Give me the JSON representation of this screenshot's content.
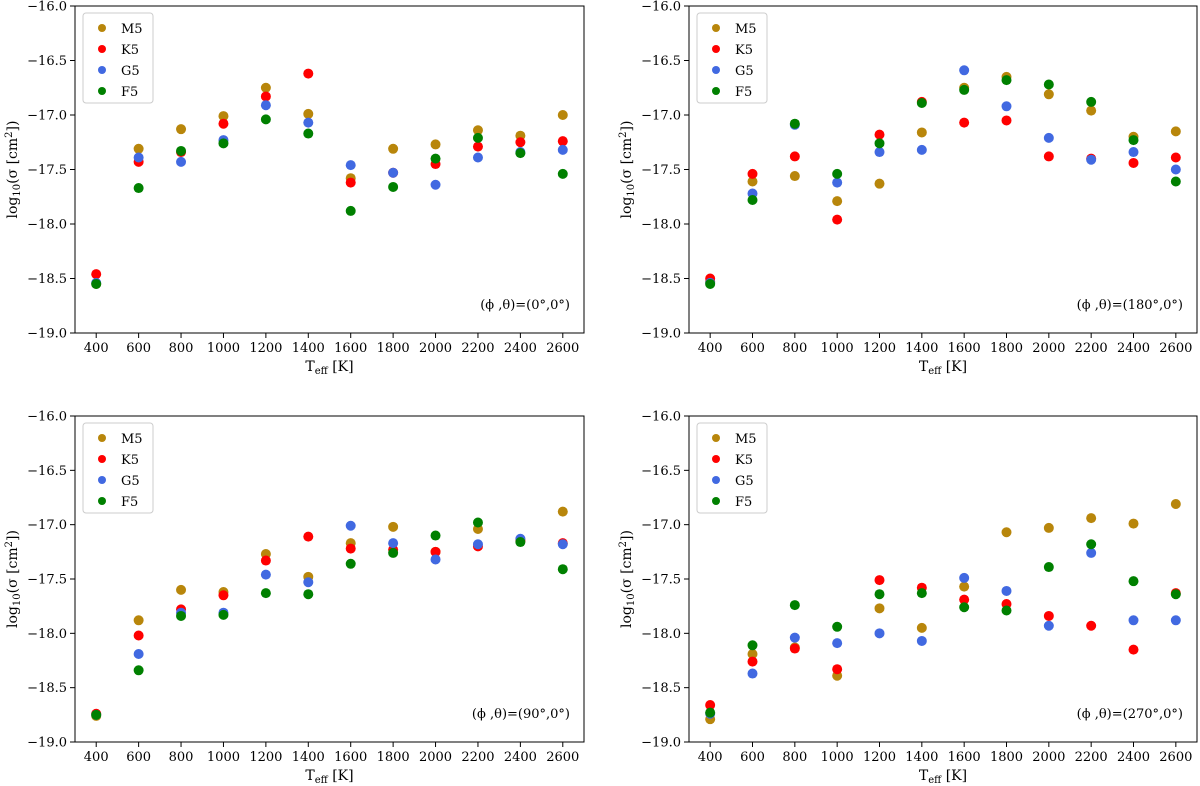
{
  "chart_data": [
    {
      "type": "scatter",
      "title": "",
      "xlabel": "T",
      "xlabel_sub": "eff",
      "xlabel_unit": " [K]",
      "ylabel_text": "log10(σ [cm2])",
      "annotation": "(ϕ ,θ)=(0°,0°)",
      "xticks": [
        400,
        600,
        800,
        1000,
        1200,
        1400,
        1600,
        1800,
        2000,
        2200,
        2400,
        2600
      ],
      "yticks": [
        -16.0,
        -16.5,
        -17.0,
        -17.5,
        -18.0,
        -18.5,
        -19.0
      ],
      "ytick_labels": [
        "−16.0",
        "−16.5",
        "−17.0",
        "−17.5",
        "−18.0",
        "−18.5",
        "−19.0"
      ],
      "xlim": [
        300,
        2700
      ],
      "ylim": [
        -19.0,
        -16.0
      ],
      "legend": "top-left",
      "series": [
        {
          "name": "M5",
          "color": "#b8860b",
          "x": [
            400,
            600,
            800,
            1000,
            1200,
            1400,
            1600,
            1800,
            2000,
            2200,
            2400,
            2600
          ],
          "y": [
            -18.55,
            -17.31,
            -17.13,
            -17.01,
            -16.75,
            -16.99,
            -17.58,
            -17.31,
            -17.27,
            -17.14,
            -17.19,
            -17.0
          ]
        },
        {
          "name": "K5",
          "color": "#ff0000",
          "x": [
            400,
            600,
            800,
            1000,
            1200,
            1400,
            1600,
            1800,
            2000,
            2200,
            2400,
            2600
          ],
          "y": [
            -18.46,
            -17.43,
            -17.34,
            -17.08,
            -16.83,
            -16.62,
            -17.62,
            -17.53,
            -17.45,
            -17.29,
            -17.25,
            -17.24
          ]
        },
        {
          "name": "G5",
          "color": "#4169e1",
          "x": [
            400,
            600,
            800,
            1000,
            1200,
            1400,
            1600,
            1800,
            2000,
            2200,
            2400,
            2600
          ],
          "y": [
            -18.54,
            -17.39,
            -17.43,
            -17.23,
            -16.91,
            -17.07,
            -17.46,
            -17.53,
            -17.64,
            -17.39,
            -17.34,
            -17.32
          ]
        },
        {
          "name": "F5",
          "color": "#008000",
          "x": [
            400,
            600,
            800,
            1000,
            1200,
            1400,
            1600,
            1800,
            2000,
            2200,
            2400,
            2600
          ],
          "y": [
            -18.55,
            -17.67,
            -17.33,
            -17.26,
            -17.04,
            -17.17,
            -17.88,
            -17.66,
            -17.4,
            -17.21,
            -17.35,
            -17.54
          ]
        }
      ]
    },
    {
      "type": "scatter",
      "title": "",
      "xlabel": "T",
      "xlabel_sub": "eff",
      "xlabel_unit": " [K]",
      "ylabel_text": "log10(σ [cm2])",
      "annotation": "(ϕ ,θ)=(180°,0°)",
      "xticks": [
        400,
        600,
        800,
        1000,
        1200,
        1400,
        1600,
        1800,
        2000,
        2200,
        2400,
        2600
      ],
      "yticks": [
        -16.0,
        -16.5,
        -17.0,
        -17.5,
        -18.0,
        -18.5,
        -19.0
      ],
      "ytick_labels": [
        "−16.0",
        "−16.5",
        "−17.0",
        "−17.5",
        "−18.0",
        "−18.5",
        "−19.0"
      ],
      "xlim": [
        300,
        2700
      ],
      "ylim": [
        -19.0,
        -16.0
      ],
      "legend": "top-left",
      "series": [
        {
          "name": "M5",
          "color": "#b8860b",
          "x": [
            400,
            600,
            800,
            1000,
            1200,
            1400,
            1600,
            1800,
            2000,
            2200,
            2400,
            2600
          ],
          "y": [
            -18.53,
            -17.61,
            -17.56,
            -17.79,
            -17.63,
            -17.16,
            -16.75,
            -16.65,
            -16.81,
            -16.96,
            -17.2,
            -17.15
          ]
        },
        {
          "name": "K5",
          "color": "#ff0000",
          "x": [
            400,
            600,
            800,
            1000,
            1200,
            1400,
            1600,
            1800,
            2000,
            2200,
            2400,
            2600
          ],
          "y": [
            -18.5,
            -17.54,
            -17.38,
            -17.96,
            -17.18,
            -16.88,
            -17.07,
            -17.05,
            -17.38,
            -17.4,
            -17.44,
            -17.39
          ]
        },
        {
          "name": "G5",
          "color": "#4169e1",
          "x": [
            400,
            600,
            800,
            1000,
            1200,
            1400,
            1600,
            1800,
            2000,
            2200,
            2400,
            2600
          ],
          "y": [
            -18.54,
            -17.72,
            -17.09,
            -17.62,
            -17.34,
            -17.32,
            -16.59,
            -16.92,
            -17.21,
            -17.41,
            -17.34,
            -17.5
          ]
        },
        {
          "name": "F5",
          "color": "#008000",
          "x": [
            400,
            600,
            800,
            1000,
            1200,
            1400,
            1600,
            1800,
            2000,
            2200,
            2400,
            2600
          ],
          "y": [
            -18.55,
            -17.78,
            -17.08,
            -17.54,
            -17.26,
            -16.89,
            -16.77,
            -16.68,
            -16.72,
            -16.88,
            -17.23,
            -17.61
          ]
        }
      ]
    },
    {
      "type": "scatter",
      "title": "",
      "xlabel": "T",
      "xlabel_sub": "eff",
      "xlabel_unit": " [K]",
      "ylabel_text": "log10(σ [cm2])",
      "annotation": "(ϕ ,θ)=(90°,0°)",
      "xticks": [
        400,
        600,
        800,
        1000,
        1200,
        1400,
        1600,
        1800,
        2000,
        2200,
        2400,
        2600
      ],
      "yticks": [
        -16.0,
        -16.5,
        -17.0,
        -17.5,
        -18.0,
        -18.5,
        -19.0
      ],
      "ytick_labels": [
        "−16.0",
        "−16.5",
        "−17.0",
        "−17.5",
        "−18.0",
        "−18.5",
        "−19.0"
      ],
      "xlim": [
        300,
        2700
      ],
      "ylim": [
        -19.0,
        -16.0
      ],
      "legend": "top-left",
      "series": [
        {
          "name": "M5",
          "color": "#b8860b",
          "x": [
            400,
            600,
            800,
            1000,
            1200,
            1400,
            1600,
            1800,
            2000,
            2200,
            2400,
            2600
          ],
          "y": [
            -18.76,
            -17.88,
            -17.6,
            -17.62,
            -17.27,
            -17.48,
            -17.17,
            -17.02,
            -17.25,
            -17.04,
            -17.14,
            -16.88
          ]
        },
        {
          "name": "K5",
          "color": "#ff0000",
          "x": [
            400,
            600,
            800,
            1000,
            1200,
            1400,
            1600,
            1800,
            2000,
            2200,
            2400,
            2600
          ],
          "y": [
            -18.74,
            -18.02,
            -17.78,
            -17.65,
            -17.33,
            -17.11,
            -17.22,
            -17.23,
            -17.25,
            -17.2,
            -17.15,
            -17.17
          ]
        },
        {
          "name": "G5",
          "color": "#4169e1",
          "x": [
            400,
            600,
            800,
            1000,
            1200,
            1400,
            1600,
            1800,
            2000,
            2200,
            2400,
            2600
          ],
          "y": [
            -18.75,
            -18.19,
            -17.81,
            -17.81,
            -17.46,
            -17.53,
            -17.01,
            -17.17,
            -17.32,
            -17.18,
            -17.13,
            -17.18
          ]
        },
        {
          "name": "F5",
          "color": "#008000",
          "x": [
            400,
            600,
            800,
            1000,
            1200,
            1400,
            1600,
            1800,
            2000,
            2200,
            2400,
            2600
          ],
          "y": [
            -18.75,
            -18.34,
            -17.84,
            -17.83,
            -17.63,
            -17.64,
            -17.36,
            -17.26,
            -17.1,
            -16.98,
            -17.16,
            -17.41
          ]
        }
      ]
    },
    {
      "type": "scatter",
      "title": "",
      "xlabel": "T",
      "xlabel_sub": "eff",
      "xlabel_unit": " [K]",
      "ylabel_text": "log10(σ [cm2])",
      "annotation": "(ϕ ,θ)=(270°,0°)",
      "xticks": [
        400,
        600,
        800,
        1000,
        1200,
        1400,
        1600,
        1800,
        2000,
        2200,
        2400,
        2600
      ],
      "yticks": [
        -16.0,
        -16.5,
        -17.0,
        -17.5,
        -18.0,
        -18.5,
        -19.0
      ],
      "ytick_labels": [
        "−16.0",
        "−16.5",
        "−17.0",
        "−17.5",
        "−18.0",
        "−18.5",
        "−19.0"
      ],
      "xlim": [
        300,
        2700
      ],
      "ylim": [
        -19.0,
        -16.0
      ],
      "legend": "top-left",
      "series": [
        {
          "name": "M5",
          "color": "#b8860b",
          "x": [
            400,
            600,
            800,
            1000,
            1200,
            1400,
            1600,
            1800,
            2000,
            2200,
            2400,
            2600
          ],
          "y": [
            -18.79,
            -18.19,
            -18.13,
            -18.39,
            -17.77,
            -17.95,
            -17.57,
            -17.07,
            -17.03,
            -16.94,
            -16.99,
            -16.81
          ]
        },
        {
          "name": "K5",
          "color": "#ff0000",
          "x": [
            400,
            600,
            800,
            1000,
            1200,
            1400,
            1600,
            1800,
            2000,
            2200,
            2400,
            2600
          ],
          "y": [
            -18.66,
            -18.26,
            -18.14,
            -18.33,
            -17.51,
            -17.58,
            -17.69,
            -17.73,
            -17.84,
            -17.93,
            -18.15,
            -17.63
          ]
        },
        {
          "name": "G5",
          "color": "#4169e1",
          "x": [
            400,
            600,
            800,
            1000,
            1200,
            1400,
            1600,
            1800,
            2000,
            2200,
            2400,
            2600
          ],
          "y": [
            -18.74,
            -18.37,
            -18.04,
            -18.09,
            -18.0,
            -18.07,
            -17.49,
            -17.61,
            -17.93,
            -17.26,
            -17.88,
            -17.88
          ]
        },
        {
          "name": "F5",
          "color": "#008000",
          "x": [
            400,
            600,
            800,
            1000,
            1200,
            1400,
            1600,
            1800,
            2000,
            2200,
            2400,
            2600
          ],
          "y": [
            -18.73,
            -18.11,
            -17.74,
            -17.94,
            -17.64,
            -17.63,
            -17.76,
            -17.79,
            -17.39,
            -17.18,
            -17.52,
            -17.64
          ]
        }
      ]
    }
  ]
}
